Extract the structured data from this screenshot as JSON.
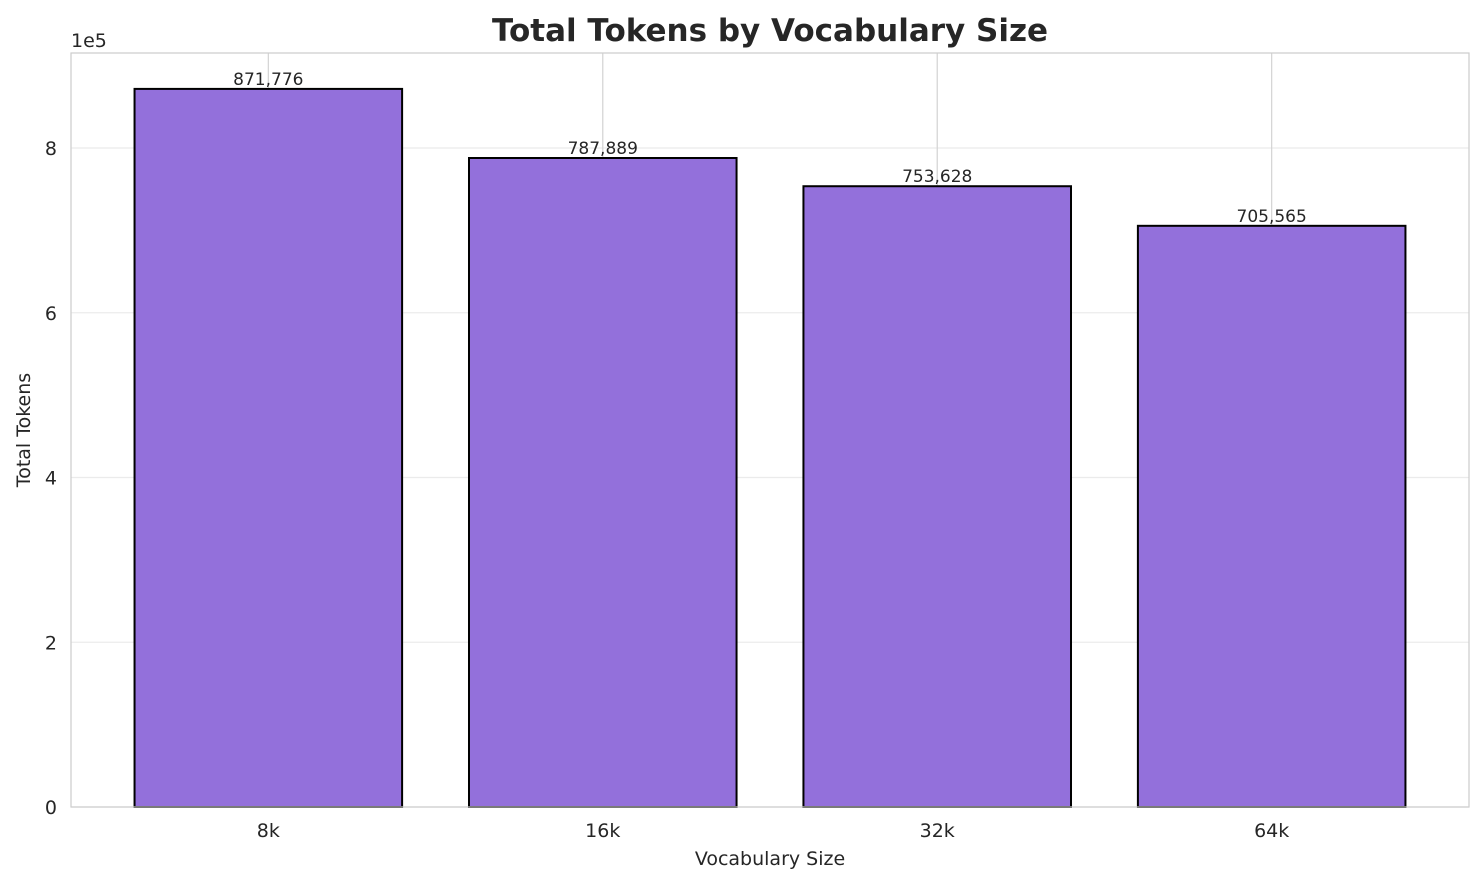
{
  "chart_data": {
    "type": "bar",
    "title": "Total Tokens by Vocabulary Size",
    "xlabel": "Vocabulary Size",
    "ylabel": "Total Tokens",
    "y_offset_label": "1e5",
    "categories": [
      "8k",
      "16k",
      "32k",
      "64k"
    ],
    "values": [
      871776,
      787889,
      753628,
      705565
    ],
    "data_labels": [
      "871,776",
      "787,889",
      "753,628",
      "705,565"
    ],
    "ylim": [
      0,
      915365
    ],
    "yticks": [
      0,
      200000,
      400000,
      600000,
      800000
    ],
    "ytick_labels": [
      "0",
      "2",
      "4",
      "6",
      "8"
    ],
    "grid": true,
    "bar_color": "#9370DB",
    "bar_edge_color": "#000000"
  }
}
